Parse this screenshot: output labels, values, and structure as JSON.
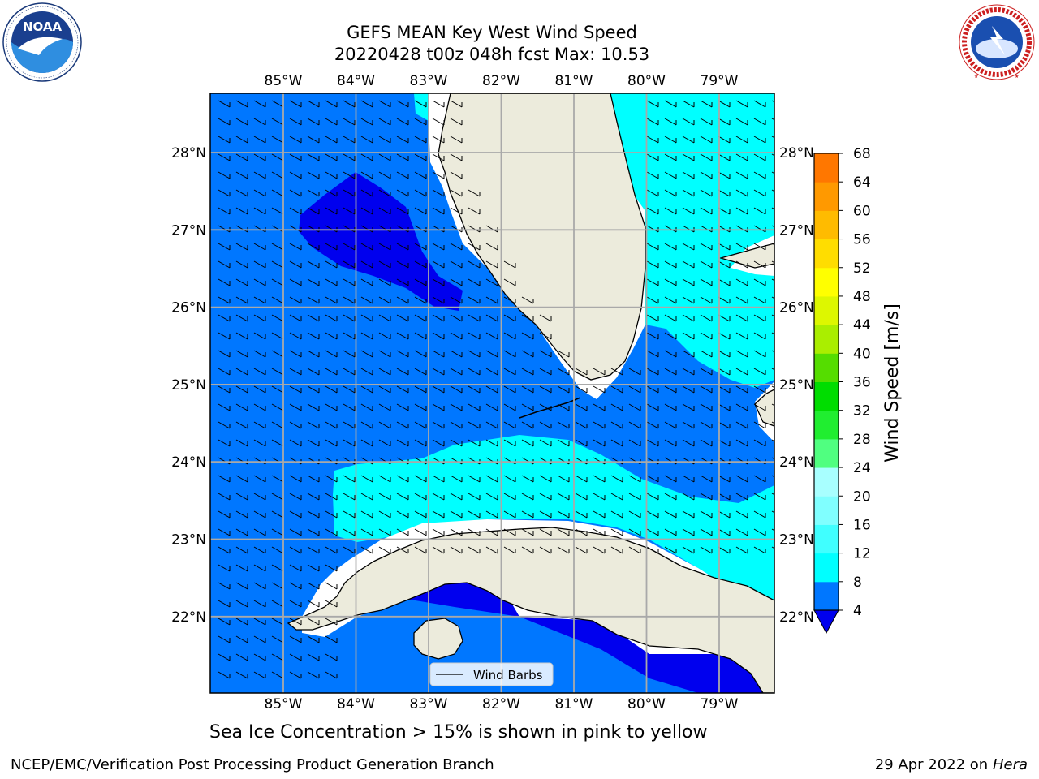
{
  "header": {
    "title_line1": "GEFS MEAN Key West Wind Speed",
    "title_line2": "20220428 t00z 048h fcst   Max: 10.53"
  },
  "logos": {
    "left": {
      "icon": "noaa-logo-icon",
      "text": "NOAA",
      "ring_text": "NATIONAL OCEANIC AND ATMOSPHERIC ADMINISTRATION · U.S. DEPARTMENT OF COMMERCE"
    },
    "right": {
      "icon": "nws-logo-icon",
      "ring_text": "NATIONAL WEATHER SERVICE"
    }
  },
  "map": {
    "lon_labels": [
      "85°W",
      "84°W",
      "83°W",
      "82°W",
      "81°W",
      "80°W",
      "79°W"
    ],
    "lat_labels": [
      "28°N",
      "27°N",
      "26°N",
      "25°N",
      "24°N",
      "23°N",
      "22°N"
    ],
    "legend_label": "Wind Barbs",
    "grid": true
  },
  "colorbar": {
    "label": "Wind Speed [m/s]",
    "ticks": [
      "4",
      "8",
      "12",
      "16",
      "20",
      "24",
      "28",
      "32",
      "36",
      "40",
      "44",
      "48",
      "52",
      "56",
      "60",
      "64",
      "68"
    ],
    "colors": [
      "#0000ee",
      "#0077ff",
      "#00ffff",
      "#40ffff",
      "#80ffff",
      "#a8ffff",
      "#50ff80",
      "#20ee30",
      "#00dd00",
      "#55dd00",
      "#aaee00",
      "#ddf700",
      "#ffff00",
      "#ffdd00",
      "#ffbb00",
      "#ff9900",
      "#ff7700",
      "#ff5500",
      "#ff3300",
      "#ff0000"
    ]
  },
  "footer": {
    "caption": "Sea Ice Concentration > 15% is shown in pink to yellow",
    "credit": "NCEP/EMC/Verification Post Processing Product Generation Branch",
    "date": "29 Apr 2022 on ",
    "host": "Hera"
  }
}
